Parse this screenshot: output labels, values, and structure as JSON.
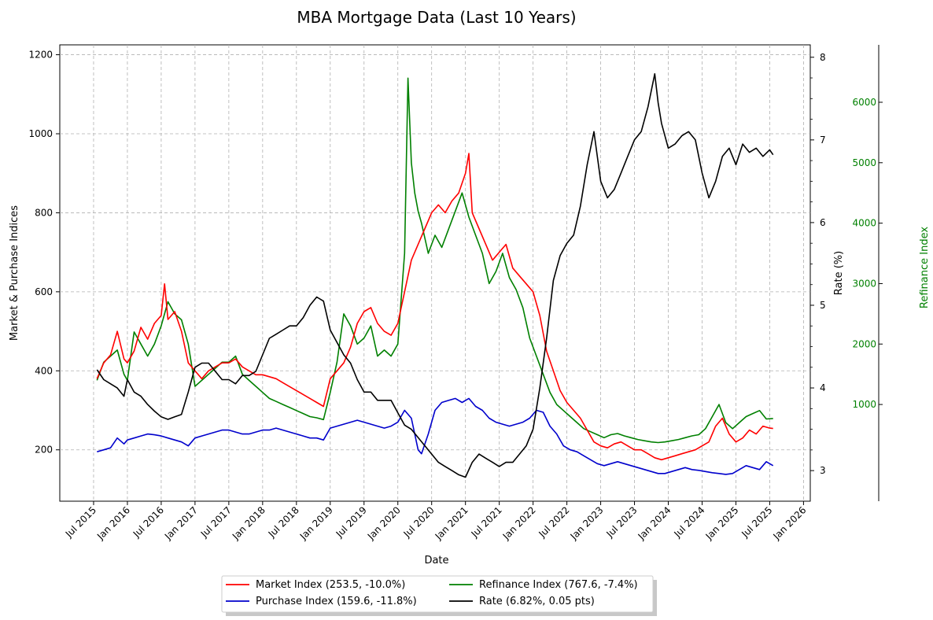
{
  "chart_data": {
    "type": "line",
    "title": "MBA Mortgage Data (Last 10 Years)",
    "xlabel": "Date",
    "ylabel_left": "Market & Purchase Indices",
    "ylabel_right": "Rate (%)",
    "ylabel_far_right": "Refinance Index",
    "grid": true,
    "legend_position": "bottom-center",
    "x_range": [
      2015.0,
      2026.1
    ],
    "x_ticks": [
      {
        "label": "Jul 2015",
        "value": 2015.5
      },
      {
        "label": "Jan 2016",
        "value": 2016.0
      },
      {
        "label": "Jul 2016",
        "value": 2016.5
      },
      {
        "label": "Jan 2017",
        "value": 2017.0
      },
      {
        "label": "Jul 2017",
        "value": 2017.5
      },
      {
        "label": "Jan 2018",
        "value": 2018.0
      },
      {
        "label": "Jul 2018",
        "value": 2018.5
      },
      {
        "label": "Jan 2019",
        "value": 2019.0
      },
      {
        "label": "Jul 2019",
        "value": 2019.5
      },
      {
        "label": "Jan 2020",
        "value": 2020.0
      },
      {
        "label": "Jul 2020",
        "value": 2020.5
      },
      {
        "label": "Jan 2021",
        "value": 2021.0
      },
      {
        "label": "Jul 2021",
        "value": 2021.5
      },
      {
        "label": "Jan 2022",
        "value": 2022.0
      },
      {
        "label": "Jul 2022",
        "value": 2022.5
      },
      {
        "label": "Jan 2023",
        "value": 2023.0
      },
      {
        "label": "Jul 2023",
        "value": 2023.5
      },
      {
        "label": "Jan 2024",
        "value": 2024.0
      },
      {
        "label": "Jul 2024",
        "value": 2024.5
      },
      {
        "label": "Jan 2025",
        "value": 2025.0
      },
      {
        "label": "Jul 2025",
        "value": 2025.5
      },
      {
        "label": "Jan 2026",
        "value": 2026.0
      }
    ],
    "axes": {
      "left": {
        "range": [
          70,
          1225
        ],
        "ticks": [
          "200",
          "400",
          "600",
          "800",
          "1000",
          "1200"
        ],
        "tick_values": [
          200,
          400,
          600,
          800,
          1000,
          1200
        ],
        "color": "#000000"
      },
      "right": {
        "range": [
          2.63,
          8.15
        ],
        "ticks": [
          "3",
          "4",
          "5",
          "6",
          "7",
          "8"
        ],
        "tick_values": [
          3,
          4,
          5,
          6,
          7,
          8
        ],
        "color": "#000000"
      },
      "far_right": {
        "range": [
          -600,
          6950
        ],
        "ticks": [
          "1000",
          "2000",
          "3000",
          "4000",
          "5000",
          "6000"
        ],
        "tick_values": [
          1000,
          2000,
          3000,
          4000,
          5000,
          6000
        ],
        "color": "#008000"
      }
    },
    "series": [
      {
        "name": "Market Index",
        "legend": "Market Index (253.5, -10.0%)",
        "color": "#ff0000",
        "axis": "left",
        "x": [
          2015.55,
          2015.65,
          2015.75,
          2015.85,
          2015.95,
          2016.0,
          2016.1,
          2016.2,
          2016.3,
          2016.4,
          2016.5,
          2016.55,
          2016.6,
          2016.7,
          2016.8,
          2016.9,
          2017.0,
          2017.1,
          2017.2,
          2017.3,
          2017.4,
          2017.5,
          2017.6,
          2017.7,
          2017.8,
          2017.9,
          2018.0,
          2018.1,
          2018.2,
          2018.3,
          2018.4,
          2018.5,
          2018.6,
          2018.7,
          2018.8,
          2018.9,
          2019.0,
          2019.1,
          2019.2,
          2019.3,
          2019.4,
          2019.5,
          2019.6,
          2019.7,
          2019.8,
          2019.9,
          2020.0,
          2020.1,
          2020.2,
          2020.3,
          2020.4,
          2020.5,
          2020.6,
          2020.7,
          2020.8,
          2020.9,
          2021.0,
          2021.05,
          2021.1,
          2021.2,
          2021.3,
          2021.4,
          2021.5,
          2021.6,
          2021.7,
          2021.8,
          2021.9,
          2022.0,
          2022.1,
          2022.2,
          2022.3,
          2022.4,
          2022.5,
          2022.6,
          2022.7,
          2022.8,
          2022.9,
          2023.0,
          2023.1,
          2023.2,
          2023.3,
          2023.4,
          2023.5,
          2023.6,
          2023.7,
          2023.8,
          2023.9,
          2024.0,
          2024.1,
          2024.2,
          2024.3,
          2024.4,
          2024.5,
          2024.6,
          2024.7,
          2024.8,
          2024.9,
          2025.0,
          2025.1,
          2025.2,
          2025.3,
          2025.4,
          2025.5,
          2025.55
        ],
        "values": [
          380,
          420,
          440,
          500,
          430,
          420,
          450,
          510,
          480,
          520,
          540,
          620,
          530,
          550,
          500,
          420,
          400,
          380,
          400,
          410,
          420,
          420,
          430,
          410,
          400,
          390,
          390,
          385,
          380,
          370,
          360,
          350,
          340,
          330,
          320,
          310,
          380,
          400,
          420,
          460,
          520,
          550,
          560,
          520,
          500,
          490,
          520,
          600,
          680,
          720,
          760,
          800,
          820,
          800,
          830,
          850,
          900,
          950,
          800,
          760,
          720,
          680,
          700,
          720,
          660,
          640,
          620,
          600,
          540,
          450,
          400,
          350,
          320,
          300,
          280,
          250,
          220,
          210,
          205,
          215,
          220,
          210,
          200,
          200,
          190,
          180,
          175,
          180,
          185,
          190,
          195,
          200,
          210,
          220,
          260,
          280,
          240,
          220,
          230,
          250,
          240,
          260,
          255,
          254
        ]
      },
      {
        "name": "Purchase Index",
        "legend": "Purchase Index (159.6, -11.8%)",
        "color": "#0000cc",
        "axis": "left",
        "x": [
          2015.55,
          2015.65,
          2015.75,
          2015.85,
          2015.95,
          2016.0,
          2016.1,
          2016.2,
          2016.3,
          2016.4,
          2016.5,
          2016.6,
          2016.7,
          2016.8,
          2016.9,
          2017.0,
          2017.1,
          2017.2,
          2017.3,
          2017.4,
          2017.5,
          2017.6,
          2017.7,
          2017.8,
          2017.9,
          2018.0,
          2018.1,
          2018.2,
          2018.3,
          2018.4,
          2018.5,
          2018.6,
          2018.7,
          2018.8,
          2018.9,
          2019.0,
          2019.1,
          2019.2,
          2019.3,
          2019.4,
          2019.5,
          2019.6,
          2019.7,
          2019.8,
          2019.9,
          2020.0,
          2020.1,
          2020.2,
          2020.3,
          2020.35,
          2020.45,
          2020.55,
          2020.65,
          2020.75,
          2020.85,
          2020.95,
          2021.05,
          2021.15,
          2021.25,
          2021.35,
          2021.45,
          2021.55,
          2021.65,
          2021.75,
          2021.85,
          2021.95,
          2022.05,
          2022.15,
          2022.25,
          2022.35,
          2022.45,
          2022.55,
          2022.65,
          2022.75,
          2022.85,
          2022.95,
          2023.05,
          2023.15,
          2023.25,
          2023.35,
          2023.45,
          2023.55,
          2023.65,
          2023.75,
          2023.85,
          2023.95,
          2024.05,
          2024.15,
          2024.25,
          2024.35,
          2024.45,
          2024.55,
          2024.65,
          2024.75,
          2024.85,
          2024.95,
          2025.05,
          2025.15,
          2025.25,
          2025.35,
          2025.45,
          2025.55
        ],
        "values": [
          195,
          200,
          205,
          230,
          215,
          225,
          230,
          235,
          240,
          238,
          235,
          230,
          225,
          220,
          210,
          230,
          235,
          240,
          245,
          250,
          250,
          245,
          240,
          240,
          245,
          250,
          250,
          255,
          250,
          245,
          240,
          235,
          230,
          230,
          225,
          255,
          260,
          265,
          270,
          275,
          270,
          265,
          260,
          255,
          260,
          270,
          300,
          280,
          200,
          190,
          240,
          300,
          320,
          325,
          330,
          320,
          330,
          310,
          300,
          280,
          270,
          265,
          260,
          265,
          270,
          280,
          300,
          295,
          260,
          240,
          210,
          200,
          195,
          185,
          175,
          165,
          160,
          165,
          170,
          165,
          160,
          155,
          150,
          145,
          140,
          140,
          145,
          150,
          155,
          150,
          148,
          145,
          142,
          140,
          138,
          140,
          150,
          160,
          155,
          150,
          170,
          160
        ]
      },
      {
        "name": "Refinance Index",
        "legend": "Refinance Index (767.6, -7.4%)",
        "color": "#008000",
        "axis": "far_right",
        "x": [
          2015.55,
          2015.65,
          2015.75,
          2015.85,
          2015.95,
          2016.0,
          2016.1,
          2016.2,
          2016.3,
          2016.4,
          2016.5,
          2016.6,
          2016.7,
          2016.8,
          2016.9,
          2017.0,
          2017.1,
          2017.2,
          2017.3,
          2017.4,
          2017.5,
          2017.6,
          2017.7,
          2017.8,
          2017.9,
          2018.0,
          2018.1,
          2018.2,
          2018.3,
          2018.4,
          2018.5,
          2018.6,
          2018.7,
          2018.8,
          2018.9,
          2019.0,
          2019.1,
          2019.2,
          2019.3,
          2019.4,
          2019.5,
          2019.6,
          2019.7,
          2019.8,
          2019.9,
          2020.0,
          2020.1,
          2020.15,
          2020.2,
          2020.25,
          2020.3,
          2020.35,
          2020.45,
          2020.55,
          2020.65,
          2020.75,
          2020.85,
          2020.95,
          2021.05,
          2021.15,
          2021.25,
          2021.35,
          2021.45,
          2021.55,
          2021.65,
          2021.75,
          2021.85,
          2021.95,
          2022.05,
          2022.15,
          2022.25,
          2022.35,
          2022.45,
          2022.55,
          2022.65,
          2022.75,
          2022.85,
          2022.95,
          2023.05,
          2023.15,
          2023.25,
          2023.35,
          2023.45,
          2023.55,
          2023.65,
          2023.75,
          2023.85,
          2023.95,
          2024.05,
          2024.15,
          2024.25,
          2024.35,
          2024.45,
          2024.55,
          2024.65,
          2024.75,
          2024.85,
          2024.95,
          2025.05,
          2025.15,
          2025.25,
          2025.35,
          2025.45,
          2025.55
        ],
        "values": [
          1400,
          1700,
          1800,
          1900,
          1500,
          1400,
          2200,
          2000,
          1800,
          2000,
          2300,
          2700,
          2500,
          2400,
          2000,
          1300,
          1400,
          1500,
          1600,
          1700,
          1700,
          1800,
          1500,
          1400,
          1300,
          1200,
          1100,
          1050,
          1000,
          950,
          900,
          850,
          800,
          780,
          750,
          1200,
          1700,
          2500,
          2300,
          2000,
          2100,
          2300,
          1800,
          1900,
          1800,
          2000,
          3500,
          6400,
          5000,
          4500,
          4200,
          4000,
          3500,
          3800,
          3600,
          3900,
          4200,
          4500,
          4100,
          3800,
          3500,
          3000,
          3200,
          3500,
          3100,
          2900,
          2600,
          2100,
          1800,
          1500,
          1200,
          1000,
          900,
          800,
          700,
          600,
          550,
          500,
          450,
          500,
          520,
          480,
          450,
          420,
          400,
          380,
          370,
          380,
          400,
          420,
          450,
          480,
          500,
          600,
          800,
          1000,
          700,
          600,
          700,
          800,
          850,
          900,
          760,
          768
        ]
      },
      {
        "name": "Rate",
        "legend": "Rate (6.82%, 0.05 pts)",
        "color": "#000000",
        "axis": "right",
        "x": [
          2015.55,
          2015.65,
          2015.75,
          2015.85,
          2015.95,
          2016.0,
          2016.1,
          2016.2,
          2016.3,
          2016.4,
          2016.5,
          2016.6,
          2016.7,
          2016.8,
          2016.9,
          2017.0,
          2017.1,
          2017.2,
          2017.3,
          2017.4,
          2017.5,
          2017.6,
          2017.7,
          2017.8,
          2017.9,
          2018.0,
          2018.1,
          2018.2,
          2018.3,
          2018.4,
          2018.5,
          2018.6,
          2018.7,
          2018.8,
          2018.9,
          2019.0,
          2019.1,
          2019.2,
          2019.3,
          2019.4,
          2019.5,
          2019.6,
          2019.7,
          2019.8,
          2019.9,
          2020.0,
          2020.1,
          2020.2,
          2020.3,
          2020.4,
          2020.5,
          2020.6,
          2020.7,
          2020.8,
          2020.9,
          2021.0,
          2021.1,
          2021.2,
          2021.3,
          2021.4,
          2021.5,
          2021.6,
          2021.7,
          2021.8,
          2021.9,
          2022.0,
          2022.1,
          2022.2,
          2022.3,
          2022.4,
          2022.5,
          2022.6,
          2022.7,
          2022.8,
          2022.9,
          2023.0,
          2023.1,
          2023.2,
          2023.3,
          2023.4,
          2023.5,
          2023.6,
          2023.7,
          2023.8,
          2023.85,
          2023.9,
          2024.0,
          2024.1,
          2024.2,
          2024.3,
          2024.4,
          2024.5,
          2024.6,
          2024.7,
          2024.8,
          2024.9,
          2025.0,
          2025.1,
          2025.2,
          2025.3,
          2025.4,
          2025.5,
          2025.55
        ],
        "values": [
          4.22,
          4.1,
          4.05,
          4.0,
          3.9,
          4.1,
          3.95,
          3.9,
          3.8,
          3.72,
          3.65,
          3.62,
          3.65,
          3.68,
          3.95,
          4.25,
          4.3,
          4.3,
          4.2,
          4.1,
          4.1,
          4.05,
          4.15,
          4.15,
          4.2,
          4.4,
          4.6,
          4.65,
          4.7,
          4.75,
          4.75,
          4.85,
          5.0,
          5.1,
          5.05,
          4.7,
          4.55,
          4.4,
          4.3,
          4.1,
          3.95,
          3.95,
          3.85,
          3.85,
          3.85,
          3.7,
          3.55,
          3.5,
          3.4,
          3.3,
          3.2,
          3.1,
          3.05,
          3.0,
          2.95,
          2.92,
          3.1,
          3.2,
          3.15,
          3.1,
          3.05,
          3.1,
          3.1,
          3.2,
          3.3,
          3.5,
          4.0,
          4.6,
          5.3,
          5.6,
          5.75,
          5.85,
          6.2,
          6.7,
          7.1,
          6.5,
          6.3,
          6.4,
          6.6,
          6.8,
          7.0,
          7.1,
          7.4,
          7.8,
          7.45,
          7.2,
          6.9,
          6.95,
          7.05,
          7.1,
          7.0,
          6.6,
          6.3,
          6.5,
          6.8,
          6.9,
          6.7,
          6.95,
          6.85,
          6.9,
          6.8,
          6.88,
          6.82
        ]
      }
    ]
  }
}
